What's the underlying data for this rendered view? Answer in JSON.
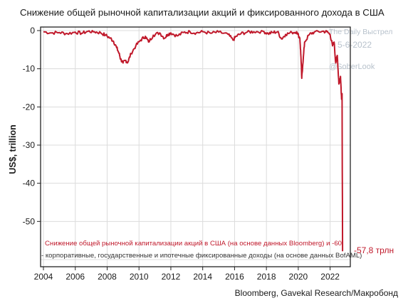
{
  "title": "Снижение общей рыночной капитализации акций и фиксированного дохода в США",
  "source": "Bloomberg, Gavekal Research/Макробонд",
  "watermark": {
    "line1": "The Daily Выстрел",
    "line2": "5-6-2022",
    "line3": "@SoberLook"
  },
  "colors": {
    "series": "#c0192b",
    "grid": "#dcdcdc",
    "axis": "#222222"
  },
  "chart_data": {
    "type": "line",
    "title": "Снижение общей рыночной капитализации акций и фиксированного дохода в США",
    "ylabel": "US$, trillion",
    "xlabel": "",
    "xlim": [
      2004,
      2023
    ],
    "ylim": [
      -60,
      0
    ],
    "x_ticks": [
      "2004",
      "2006",
      "2008",
      "2010",
      "2012",
      "2014",
      "2016",
      "2018",
      "2020",
      "2022"
    ],
    "y_ticks": [
      "0",
      "-10",
      "-20",
      "-30",
      "-40",
      "-50"
    ],
    "grid": true,
    "series": [
      {
        "name": "Снижение общей рыночной капитализации акций в США (на основе данных Bloomberg) и -60 - корпоративные, государственные и ипотечные фиксированные доходы (на основе данных BofAML)",
        "color": "#c0192b",
        "x": [
          2004.0,
          2004.5,
          2005.0,
          2005.5,
          2006.0,
          2006.4,
          2006.8,
          2007.2,
          2007.6,
          2007.9,
          2008.2,
          2008.4,
          2008.6,
          2008.75,
          2008.85,
          2009.0,
          2009.15,
          2009.3,
          2009.5,
          2009.8,
          2010.1,
          2010.4,
          2010.6,
          2010.9,
          2011.3,
          2011.6,
          2011.8,
          2012.0,
          2012.4,
          2012.8,
          2013.2,
          2013.6,
          2014.0,
          2014.5,
          2015.0,
          2015.6,
          2015.9,
          2016.1,
          2016.4,
          2016.8,
          2017.2,
          2017.8,
          2018.1,
          2018.4,
          2018.7,
          2018.95,
          2019.2,
          2019.6,
          2019.9,
          2020.1,
          2020.17,
          2020.22,
          2020.28,
          2020.4,
          2020.7,
          2021.0,
          2021.5,
          2021.8,
          2022.0,
          2022.15,
          2022.25,
          2022.35,
          2022.45,
          2022.55,
          2022.65,
          2022.72,
          2022.75,
          2022.78
        ],
        "values": [
          -0.3,
          -0.6,
          -0.5,
          -0.8,
          -0.4,
          -0.7,
          -0.2,
          -0.3,
          -0.6,
          -1.2,
          -2.0,
          -2.8,
          -4.5,
          -6.0,
          -7.5,
          -8.5,
          -7.8,
          -8.3,
          -6.0,
          -4.0,
          -2.5,
          -1.5,
          -3.0,
          -1.2,
          -0.6,
          -2.0,
          -1.0,
          -0.6,
          -1.4,
          -0.5,
          -0.3,
          -0.6,
          -0.3,
          -0.7,
          -0.4,
          -1.0,
          -2.5,
          -1.5,
          -0.8,
          -0.4,
          -0.3,
          -0.2,
          -0.8,
          -0.5,
          -0.3,
          -2.2,
          -1.0,
          -0.5,
          -0.3,
          -2.0,
          -7.0,
          -12.5,
          -9.0,
          -3.0,
          -1.0,
          -0.4,
          -0.2,
          -0.3,
          -1.0,
          -4.0,
          -3.0,
          -8.5,
          -6.5,
          -14.0,
          -12.0,
          -18.0,
          -16.5,
          -57.8
        ]
      }
    ],
    "annotations": [
      {
        "text": "Снижение общей рыночной капитализации акций в США (на основе данных Bloomberg) и -60",
        "color": "#c0192b"
      },
      {
        "text": "- корпоративные, государственные и ипотечные фиксированные доходы (на основе данных BofAML)",
        "color": "#333333"
      }
    ],
    "end_label": "-57,8 трлн"
  }
}
